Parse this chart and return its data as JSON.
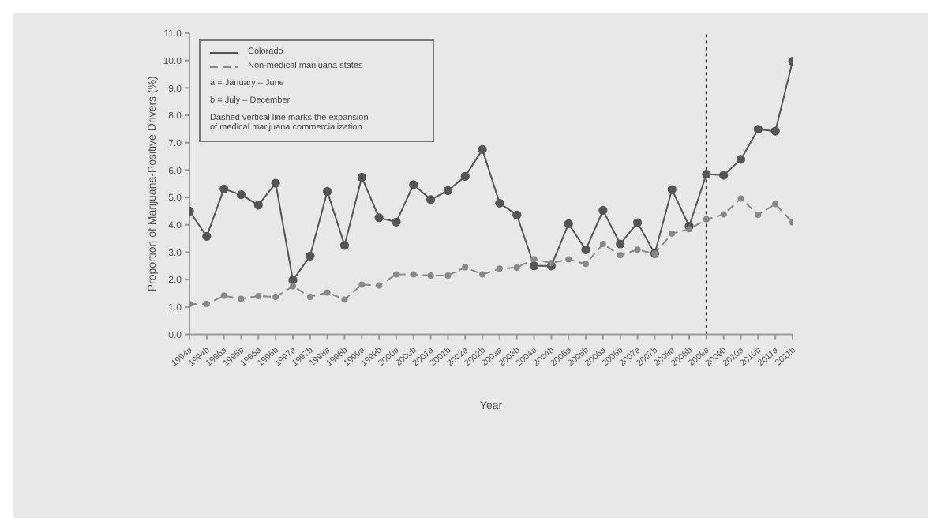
{
  "chart_data": {
    "type": "line",
    "xlabel": "Year",
    "ylabel": "Proportion of Marijuana-Positive Drivers (%)",
    "categories": [
      "1994a",
      "1994b",
      "1995a",
      "1995b",
      "1996a",
      "1996b",
      "1997a",
      "1997b",
      "1998a",
      "1998b",
      "1999a",
      "1999b",
      "2000a",
      "2000b",
      "2001a",
      "2001b",
      "2002a",
      "2002b",
      "2003a",
      "2003b",
      "2004a",
      "2004b",
      "2005a",
      "2005b",
      "2006a",
      "2006b",
      "2007a",
      "2007b",
      "2008a",
      "2008b",
      "2009a",
      "2009b",
      "2010a",
      "2010b",
      "2011a",
      "2011b"
    ],
    "series": [
      {
        "name": "Colorado",
        "color": "#555555",
        "line_style": "solid",
        "values": [
          4.5,
          3.58,
          5.31,
          5.1,
          4.72,
          5.52,
          1.98,
          2.86,
          5.22,
          3.25,
          5.74,
          4.26,
          4.1,
          5.47,
          4.92,
          5.25,
          5.77,
          6.75,
          4.79,
          4.36,
          2.5,
          2.5,
          4.04,
          3.09,
          4.53,
          3.3,
          4.08,
          2.95,
          5.29,
          3.95,
          5.85,
          5.81,
          6.39,
          7.49,
          7.42,
          9.97
        ]
      },
      {
        "name": "Non-medical marijuana states",
        "color": "#888888",
        "line_style": "dashed",
        "values": [
          1.11,
          1.11,
          1.41,
          1.3,
          1.4,
          1.37,
          1.76,
          1.37,
          1.53,
          1.27,
          1.82,
          1.79,
          2.19,
          2.19,
          2.15,
          2.15,
          2.45,
          2.19,
          2.4,
          2.44,
          2.75,
          2.6,
          2.74,
          2.57,
          3.3,
          2.89,
          3.09,
          2.95,
          3.68,
          3.84,
          4.2,
          4.38,
          4.96,
          4.37,
          4.76,
          4.09
        ]
      }
    ],
    "ylim": [
      0,
      11
    ],
    "yticks": [
      {
        "value": 0,
        "label": "0.0"
      },
      {
        "value": 1,
        "label": "1.0"
      },
      {
        "value": 2,
        "label": "2.0"
      },
      {
        "value": 3,
        "label": "3.0"
      },
      {
        "value": 4,
        "label": "4.0"
      },
      {
        "value": 5,
        "label": "5.0"
      },
      {
        "value": 6,
        "label": "6.0"
      },
      {
        "value": 7,
        "label": "7.0"
      },
      {
        "value": 8,
        "label": "8.0"
      },
      {
        "value": 9,
        "label": "9.0"
      },
      {
        "value": 10,
        "label": "10.0"
      },
      {
        "value": 11,
        "label": "11.0"
      }
    ],
    "ref_lines": [
      {
        "axis": "x",
        "value": "2009a",
        "color": "#333333",
        "line_style": "dotted"
      }
    ],
    "annotations": [
      "a = January – June",
      "b = July – December",
      "Dashed vertical line marks the expansion of medical marijuana commercialization"
    ],
    "legend": "top left",
    "marker": "circle"
  }
}
